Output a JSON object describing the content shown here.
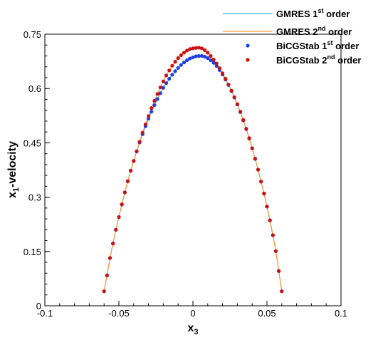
{
  "chart_data": {
    "type": "scatter",
    "xlabel": {
      "main": "x",
      "sub": "3"
    },
    "ylabel": {
      "main": "x",
      "sub": "1",
      "rest": "-velocity"
    },
    "xlim": [
      -0.1,
      0.1
    ],
    "ylim": [
      0,
      0.75
    ],
    "x_ticks": [
      -0.1,
      -0.05,
      0,
      0.05,
      0.1
    ],
    "x_tick_labels": [
      "-0.1",
      "-0.05",
      "0",
      "0.05",
      "0.1"
    ],
    "y_ticks": [
      0,
      0.15,
      0.3,
      0.45,
      0.6,
      0.75
    ],
    "y_tick_labels": [
      "0",
      "0.15",
      "0.3",
      "0.45",
      "0.6",
      "0.75"
    ],
    "grid": false,
    "legend_position": "top-right",
    "series": [
      {
        "name": "GMRES 1st order",
        "legend": {
          "main": "GMRES 1",
          "sup": "st",
          "rest": " order"
        },
        "marker": "line",
        "color": "#4da6ff",
        "x": [
          -0.06,
          -0.058,
          -0.056,
          -0.054,
          -0.052,
          -0.05,
          -0.048,
          -0.046,
          -0.044,
          -0.042,
          -0.04,
          -0.038,
          -0.036,
          -0.034,
          -0.032,
          -0.03,
          -0.028,
          -0.026,
          -0.024,
          -0.022,
          -0.02,
          -0.018,
          -0.016,
          -0.014,
          -0.012,
          -0.01,
          -0.008,
          -0.006,
          -0.004,
          -0.002,
          0.0,
          0.002,
          0.004,
          0.006,
          0.008,
          0.01,
          0.012,
          0.014,
          0.016,
          0.018,
          0.02,
          0.022,
          0.024,
          0.026,
          0.028,
          0.03,
          0.032,
          0.034,
          0.036,
          0.038,
          0.04,
          0.042,
          0.044,
          0.046,
          0.048,
          0.05,
          0.052,
          0.054,
          0.056,
          0.058,
          0.06
        ],
        "y": [
          0.04,
          0.084,
          0.132,
          0.172,
          0.21,
          0.245,
          0.28,
          0.313,
          0.344,
          0.373,
          0.4,
          0.426,
          0.451,
          0.474,
          0.496,
          0.517,
          0.536,
          0.554,
          0.571,
          0.587,
          0.602,
          0.615,
          0.627,
          0.638,
          0.648,
          0.657,
          0.665,
          0.672,
          0.678,
          0.683,
          0.686,
          0.689,
          0.69,
          0.69,
          0.688,
          0.684,
          0.678,
          0.671,
          0.662,
          0.651,
          0.639,
          0.625,
          0.61,
          0.593,
          0.575,
          0.556,
          0.535,
          0.512,
          0.488,
          0.462,
          0.435,
          0.406,
          0.376,
          0.343,
          0.31,
          0.274,
          0.236,
          0.195,
          0.151,
          0.096,
          0.04
        ]
      },
      {
        "name": "GMRES 2nd order",
        "legend": {
          "main": "GMRES 2",
          "sup": "nd",
          "rest": " order"
        },
        "marker": "line",
        "color": "#ff9933",
        "x": [
          -0.06,
          -0.058,
          -0.056,
          -0.054,
          -0.052,
          -0.05,
          -0.048,
          -0.046,
          -0.044,
          -0.042,
          -0.04,
          -0.038,
          -0.036,
          -0.034,
          -0.032,
          -0.03,
          -0.028,
          -0.026,
          -0.024,
          -0.022,
          -0.02,
          -0.018,
          -0.016,
          -0.014,
          -0.012,
          -0.01,
          -0.008,
          -0.006,
          -0.004,
          -0.002,
          0.0,
          0.002,
          0.004,
          0.006,
          0.008,
          0.01,
          0.012,
          0.014,
          0.016,
          0.018,
          0.02,
          0.022,
          0.024,
          0.026,
          0.028,
          0.03,
          0.032,
          0.034,
          0.036,
          0.038,
          0.04,
          0.042,
          0.044,
          0.046,
          0.048,
          0.05,
          0.052,
          0.054,
          0.056,
          0.058,
          0.06
        ],
        "y": [
          0.04,
          0.084,
          0.132,
          0.172,
          0.21,
          0.245,
          0.28,
          0.313,
          0.344,
          0.373,
          0.4,
          0.427,
          0.453,
          0.478,
          0.501,
          0.524,
          0.546,
          0.566,
          0.585,
          0.603,
          0.62,
          0.636,
          0.65,
          0.663,
          0.674,
          0.684,
          0.692,
          0.699,
          0.705,
          0.709,
          0.711,
          0.712,
          0.713,
          0.711,
          0.706,
          0.699,
          0.69,
          0.68,
          0.669,
          0.656,
          0.642,
          0.627,
          0.611,
          0.594,
          0.576,
          0.557,
          0.536,
          0.513,
          0.489,
          0.463,
          0.435,
          0.406,
          0.376,
          0.343,
          0.31,
          0.274,
          0.236,
          0.195,
          0.151,
          0.096,
          0.04
        ]
      },
      {
        "name": "BiCGStab 1st order",
        "legend": {
          "main": "BiCGStab 1",
          "sup": "st",
          "rest": " order"
        },
        "marker": "dot",
        "color": "#1f3fe0",
        "x": [
          -0.06,
          -0.058,
          -0.056,
          -0.054,
          -0.052,
          -0.05,
          -0.048,
          -0.046,
          -0.044,
          -0.042,
          -0.04,
          -0.038,
          -0.036,
          -0.034,
          -0.032,
          -0.03,
          -0.028,
          -0.026,
          -0.024,
          -0.022,
          -0.02,
          -0.018,
          -0.016,
          -0.014,
          -0.012,
          -0.01,
          -0.008,
          -0.006,
          -0.004,
          -0.002,
          0.0,
          0.002,
          0.004,
          0.006,
          0.008,
          0.01,
          0.012,
          0.014,
          0.016,
          0.018,
          0.02,
          0.022,
          0.024,
          0.026,
          0.028,
          0.03,
          0.032,
          0.034,
          0.036,
          0.038,
          0.04,
          0.042,
          0.044,
          0.046,
          0.048,
          0.05,
          0.052,
          0.054,
          0.056,
          0.058,
          0.06
        ],
        "y": [
          0.04,
          0.084,
          0.132,
          0.172,
          0.21,
          0.245,
          0.28,
          0.313,
          0.344,
          0.373,
          0.4,
          0.426,
          0.451,
          0.474,
          0.496,
          0.517,
          0.536,
          0.554,
          0.571,
          0.587,
          0.602,
          0.615,
          0.627,
          0.638,
          0.648,
          0.657,
          0.665,
          0.672,
          0.678,
          0.683,
          0.686,
          0.689,
          0.69,
          0.69,
          0.688,
          0.684,
          0.678,
          0.671,
          0.662,
          0.651,
          0.639,
          0.625,
          0.61,
          0.593,
          0.575,
          0.556,
          0.535,
          0.512,
          0.488,
          0.462,
          0.435,
          0.406,
          0.376,
          0.343,
          0.31,
          0.274,
          0.236,
          0.195,
          0.151,
          0.096,
          0.04
        ]
      },
      {
        "name": "BiCGStab 2nd order",
        "legend": {
          "main": "BiCGStab 2",
          "sup": "nd",
          "rest": " order"
        },
        "marker": "dot",
        "color": "#cc1010",
        "x": [
          -0.06,
          -0.058,
          -0.056,
          -0.054,
          -0.052,
          -0.05,
          -0.048,
          -0.046,
          -0.044,
          -0.042,
          -0.04,
          -0.038,
          -0.036,
          -0.034,
          -0.032,
          -0.03,
          -0.028,
          -0.026,
          -0.024,
          -0.022,
          -0.02,
          -0.018,
          -0.016,
          -0.014,
          -0.012,
          -0.01,
          -0.008,
          -0.006,
          -0.004,
          -0.002,
          0.0,
          0.002,
          0.004,
          0.006,
          0.008,
          0.01,
          0.012,
          0.014,
          0.016,
          0.018,
          0.02,
          0.022,
          0.024,
          0.026,
          0.028,
          0.03,
          0.032,
          0.034,
          0.036,
          0.038,
          0.04,
          0.042,
          0.044,
          0.046,
          0.048,
          0.05,
          0.052,
          0.054,
          0.056,
          0.058,
          0.06
        ],
        "y": [
          0.04,
          0.084,
          0.132,
          0.172,
          0.21,
          0.245,
          0.28,
          0.313,
          0.344,
          0.373,
          0.4,
          0.427,
          0.453,
          0.478,
          0.501,
          0.524,
          0.546,
          0.566,
          0.585,
          0.603,
          0.62,
          0.636,
          0.65,
          0.663,
          0.674,
          0.684,
          0.692,
          0.699,
          0.705,
          0.709,
          0.711,
          0.712,
          0.713,
          0.711,
          0.706,
          0.699,
          0.69,
          0.68,
          0.669,
          0.656,
          0.642,
          0.627,
          0.611,
          0.594,
          0.576,
          0.557,
          0.536,
          0.513,
          0.489,
          0.463,
          0.435,
          0.406,
          0.376,
          0.343,
          0.31,
          0.274,
          0.236,
          0.195,
          0.151,
          0.096,
          0.04
        ]
      }
    ]
  }
}
